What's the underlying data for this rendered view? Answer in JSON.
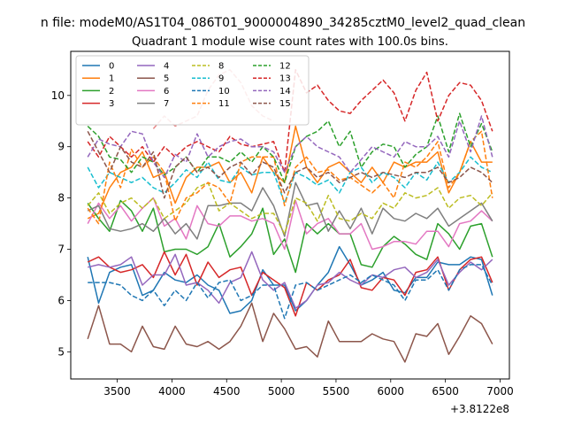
{
  "chart_data": {
    "type": "line",
    "suptitle": "n file: modeM0/AS1T04_086T01_9000004890_34285cztM0_level2_quad_clean",
    "title": "Quadrant 1 module wise count rates with 100.0s bins.",
    "xlabel": "",
    "ylabel": "",
    "x_offset_label": "+3.8122e8",
    "xlim": [
      3075,
      7085
    ],
    "ylim": [
      4.47,
      10.86
    ],
    "xticks": [
      3500,
      4000,
      4500,
      5000,
      5500,
      6000,
      6500,
      7000
    ],
    "yticks": [
      5,
      6,
      7,
      8,
      9,
      10
    ],
    "legend_position": "top-left",
    "legend_columns": 4,
    "x": [
      3230,
      3330,
      3430,
      3530,
      3630,
      3730,
      3830,
      3930,
      4030,
      4130,
      4230,
      4330,
      4430,
      4530,
      4630,
      4730,
      4830,
      4930,
      5030,
      5130,
      5230,
      5330,
      5430,
      5530,
      5630,
      5730,
      5830,
      5930,
      6030,
      6130,
      6230,
      6330,
      6430,
      6530,
      6630,
      6730,
      6830,
      6930
    ],
    "series": [
      {
        "name": "0",
        "color": "#1f77b4",
        "dash": false,
        "values": [
          6.85,
          5.95,
          6.55,
          6.65,
          6.7,
          6.1,
          6.2,
          6.55,
          6.4,
          6.35,
          6.5,
          6.3,
          6.2,
          5.75,
          5.8,
          6.0,
          6.6,
          6.3,
          6.3,
          5.8,
          6.0,
          6.3,
          6.55,
          7.05,
          6.7,
          6.3,
          6.4,
          6.55,
          6.2,
          6.15,
          6.45,
          6.45,
          6.75,
          6.7,
          6.7,
          6.85,
          6.8,
          6.1
        ]
      },
      {
        "name": "1",
        "color": "#ff7f0e",
        "dash": false,
        "values": [
          7.6,
          7.7,
          8.2,
          8.5,
          8.6,
          8.9,
          8.4,
          8.5,
          7.9,
          8.4,
          8.6,
          8.6,
          8.7,
          8.3,
          8.5,
          8.1,
          8.8,
          8.5,
          8.3,
          9.4,
          8.6,
          8.3,
          8.6,
          8.7,
          8.5,
          8.3,
          8.6,
          8.3,
          8.7,
          8.6,
          8.7,
          8.7,
          8.9,
          8.1,
          8.5,
          9.1,
          8.7,
          8.7
        ]
      },
      {
        "name": "2",
        "color": "#2ca02c",
        "dash": false,
        "values": [
          7.9,
          7.6,
          7.35,
          7.95,
          7.75,
          7.35,
          7.8,
          6.95,
          7.0,
          7.0,
          6.9,
          7.05,
          7.5,
          6.85,
          7.05,
          7.3,
          7.8,
          6.9,
          7.2,
          6.55,
          7.5,
          7.3,
          7.5,
          7.3,
          7.3,
          6.7,
          6.65,
          7.05,
          7.25,
          7.1,
          6.9,
          6.8,
          7.5,
          7.3,
          7.0,
          7.45,
          7.5,
          6.85
        ]
      },
      {
        "name": "3",
        "color": "#d62728",
        "dash": false,
        "values": [
          6.75,
          6.85,
          6.65,
          6.55,
          6.6,
          6.7,
          6.45,
          6.95,
          6.5,
          6.9,
          6.3,
          6.75,
          6.45,
          6.6,
          6.65,
          6.1,
          6.55,
          6.4,
          6.25,
          5.7,
          6.35,
          6.2,
          6.4,
          6.5,
          6.8,
          6.25,
          6.2,
          6.45,
          6.4,
          6.1,
          6.55,
          6.6,
          6.85,
          6.2,
          6.6,
          6.8,
          6.85,
          6.35
        ]
      },
      {
        "name": "4",
        "color": "#9467bd",
        "dash": false,
        "values": [
          6.65,
          6.7,
          6.65,
          6.7,
          6.85,
          6.3,
          6.5,
          6.5,
          6.9,
          6.3,
          6.35,
          6.2,
          5.95,
          6.35,
          6.45,
          6.95,
          6.4,
          6.2,
          6.35,
          5.85,
          6.0,
          6.3,
          6.35,
          6.55,
          6.4,
          6.3,
          6.5,
          6.45,
          6.6,
          6.65,
          6.45,
          6.55,
          6.8,
          6.3,
          6.55,
          6.75,
          6.6,
          6.8
        ]
      },
      {
        "name": "5",
        "color": "#8c564b",
        "dash": false,
        "values": [
          5.25,
          5.9,
          5.15,
          5.15,
          5.0,
          5.5,
          5.1,
          5.05,
          5.5,
          5.15,
          5.1,
          5.2,
          5.05,
          5.2,
          5.5,
          5.95,
          5.2,
          5.75,
          5.45,
          5.05,
          5.1,
          4.9,
          5.6,
          5.2,
          5.2,
          5.2,
          5.35,
          5.25,
          5.2,
          4.8,
          5.35,
          5.3,
          5.55,
          4.95,
          5.3,
          5.7,
          5.55,
          5.15
        ]
      },
      {
        "name": "6",
        "color": "#e377c2",
        "dash": false,
        "values": [
          7.5,
          7.9,
          7.6,
          7.85,
          7.55,
          7.8,
          8.0,
          7.45,
          7.6,
          7.2,
          7.85,
          7.5,
          7.45,
          7.65,
          7.65,
          7.55,
          7.6,
          7.5,
          7.0,
          7.95,
          7.3,
          7.5,
          7.6,
          7.3,
          7.3,
          7.5,
          7.0,
          7.05,
          7.15,
          7.15,
          7.1,
          7.35,
          7.35,
          7.05,
          7.5,
          7.55,
          7.75,
          7.55
        ]
      },
      {
        "name": "7",
        "color": "#7f7f7f",
        "dash": false,
        "values": [
          7.75,
          7.85,
          7.4,
          7.35,
          7.4,
          7.5,
          7.35,
          7.6,
          7.3,
          7.5,
          7.2,
          7.85,
          7.85,
          7.9,
          7.9,
          7.75,
          8.2,
          7.85,
          7.25,
          8.3,
          7.85,
          7.9,
          7.35,
          7.75,
          7.4,
          7.8,
          7.3,
          7.8,
          7.6,
          7.55,
          7.7,
          7.6,
          7.8,
          7.45,
          7.6,
          7.75,
          7.9,
          7.55
        ]
      },
      {
        "name": "8",
        "color": "#bcbd22",
        "dash": true,
        "values": [
          7.85,
          8.1,
          7.7,
          7.9,
          8.0,
          7.8,
          8.0,
          7.6,
          7.75,
          7.9,
          8.2,
          8.3,
          7.75,
          7.9,
          7.75,
          7.6,
          7.7,
          7.7,
          7.3,
          8.0,
          7.9,
          7.55,
          8.05,
          7.6,
          7.55,
          7.7,
          7.6,
          7.9,
          7.8,
          8.1,
          8.0,
          8.05,
          8.2,
          7.8,
          8.0,
          8.05,
          7.85,
          8.1
        ]
      },
      {
        "name": "9",
        "color": "#17becf",
        "dash": true,
        "values": [
          8.6,
          8.2,
          8.5,
          8.4,
          8.3,
          8.4,
          8.2,
          8.1,
          8.3,
          8.55,
          8.4,
          8.7,
          8.35,
          8.3,
          8.6,
          8.45,
          8.5,
          8.5,
          7.9,
          8.5,
          8.4,
          8.25,
          8.35,
          8.1,
          8.5,
          8.6,
          8.3,
          8.5,
          8.4,
          8.2,
          8.5,
          8.35,
          8.7,
          8.3,
          8.5,
          8.8,
          8.6,
          8.5
        ]
      },
      {
        "name": "10",
        "color": "#1f77b4",
        "dash": true,
        "values": [
          6.35,
          6.35,
          6.35,
          6.3,
          6.1,
          6.0,
          6.2,
          5.9,
          6.2,
          6.0,
          6.35,
          6.05,
          6.35,
          6.4,
          6.0,
          6.1,
          6.3,
          6.3,
          5.65,
          6.3,
          6.35,
          6.2,
          6.3,
          6.4,
          6.5,
          6.35,
          6.5,
          6.4,
          6.3,
          6.0,
          6.4,
          6.4,
          6.6,
          6.2,
          6.6,
          6.7,
          6.7,
          6.3
        ]
      },
      {
        "name": "11",
        "color": "#ff7f0e",
        "dash": true,
        "values": [
          7.8,
          7.5,
          8.7,
          8.2,
          8.95,
          8.6,
          8.8,
          8.5,
          7.55,
          8.0,
          8.1,
          8.3,
          8.2,
          7.9,
          8.7,
          8.8,
          8.8,
          8.8,
          7.85,
          8.6,
          8.8,
          8.5,
          8.55,
          8.35,
          8.4,
          8.25,
          8.1,
          8.3,
          8.0,
          8.7,
          8.6,
          8.8,
          9.1,
          8.2,
          8.5,
          9.1,
          9.3,
          8.0
        ]
      },
      {
        "name": "12",
        "color": "#2ca02c",
        "dash": true,
        "values": [
          9.4,
          9.2,
          8.8,
          8.75,
          8.5,
          8.8,
          8.7,
          8.45,
          8.6,
          8.8,
          8.5,
          8.8,
          8.8,
          8.7,
          8.9,
          8.7,
          9.0,
          8.8,
          8.3,
          9.0,
          9.2,
          9.3,
          9.5,
          9.0,
          9.3,
          8.6,
          8.9,
          9.05,
          9.0,
          8.6,
          8.85,
          9.0,
          9.6,
          8.9,
          9.65,
          9.0,
          9.45,
          8.9
        ]
      },
      {
        "name": "13",
        "color": "#d62728",
        "dash": true,
        "values": [
          9.1,
          8.8,
          9.2,
          9.0,
          8.8,
          9.0,
          8.7,
          9.0,
          8.8,
          9.0,
          9.1,
          9.0,
          8.9,
          9.2,
          9.05,
          9.0,
          9.05,
          9.1,
          8.5,
          10.5,
          10.05,
          10.2,
          9.9,
          9.7,
          9.65,
          9.9,
          10.1,
          10.3,
          10.05,
          9.5,
          10.1,
          10.45,
          9.5,
          10.0,
          10.25,
          10.2,
          9.9,
          9.3
        ]
      },
      {
        "name": "14",
        "color": "#9467bd",
        "dash": true,
        "values": [
          8.8,
          9.15,
          9.05,
          9.0,
          9.3,
          9.25,
          8.7,
          8.4,
          8.85,
          8.7,
          9.25,
          8.8,
          9.0,
          9.1,
          9.15,
          9.0,
          9.0,
          8.9,
          8.5,
          9.0,
          9.2,
          9.0,
          8.9,
          8.8,
          8.5,
          8.75,
          9.0,
          8.9,
          8.8,
          9.1,
          9.0,
          9.0,
          9.2,
          8.8,
          9.5,
          8.9,
          9.6,
          8.8
        ]
      },
      {
        "name": "15",
        "color": "#8c564b",
        "dash": true,
        "values": [
          9.3,
          8.9,
          8.5,
          9.0,
          8.7,
          8.6,
          8.9,
          8.0,
          8.6,
          8.8,
          8.5,
          8.6,
          8.4,
          8.6,
          8.7,
          8.45,
          8.7,
          8.6,
          8.1,
          8.5,
          8.6,
          8.4,
          8.5,
          8.3,
          8.4,
          8.5,
          8.4,
          8.5,
          8.45,
          8.4,
          8.5,
          8.5,
          8.6,
          8.3,
          8.4,
          8.6,
          8.5,
          8.3
        ]
      }
    ],
    "background_series": [
      {
        "color": "#e88a8a",
        "dash": true,
        "values": [
          null,
          null,
          null,
          null,
          null,
          null,
          9.35,
          9.6,
          9.4,
          9.5,
          9.6,
          10.1,
          10.4,
          10.5,
          10.25,
          9.8,
          9.6,
          9.5,
          null,
          null,
          null,
          null,
          null,
          null,
          null,
          null,
          null,
          null,
          null,
          null,
          null,
          null,
          null,
          null,
          null,
          null,
          null,
          null
        ]
      }
    ]
  }
}
